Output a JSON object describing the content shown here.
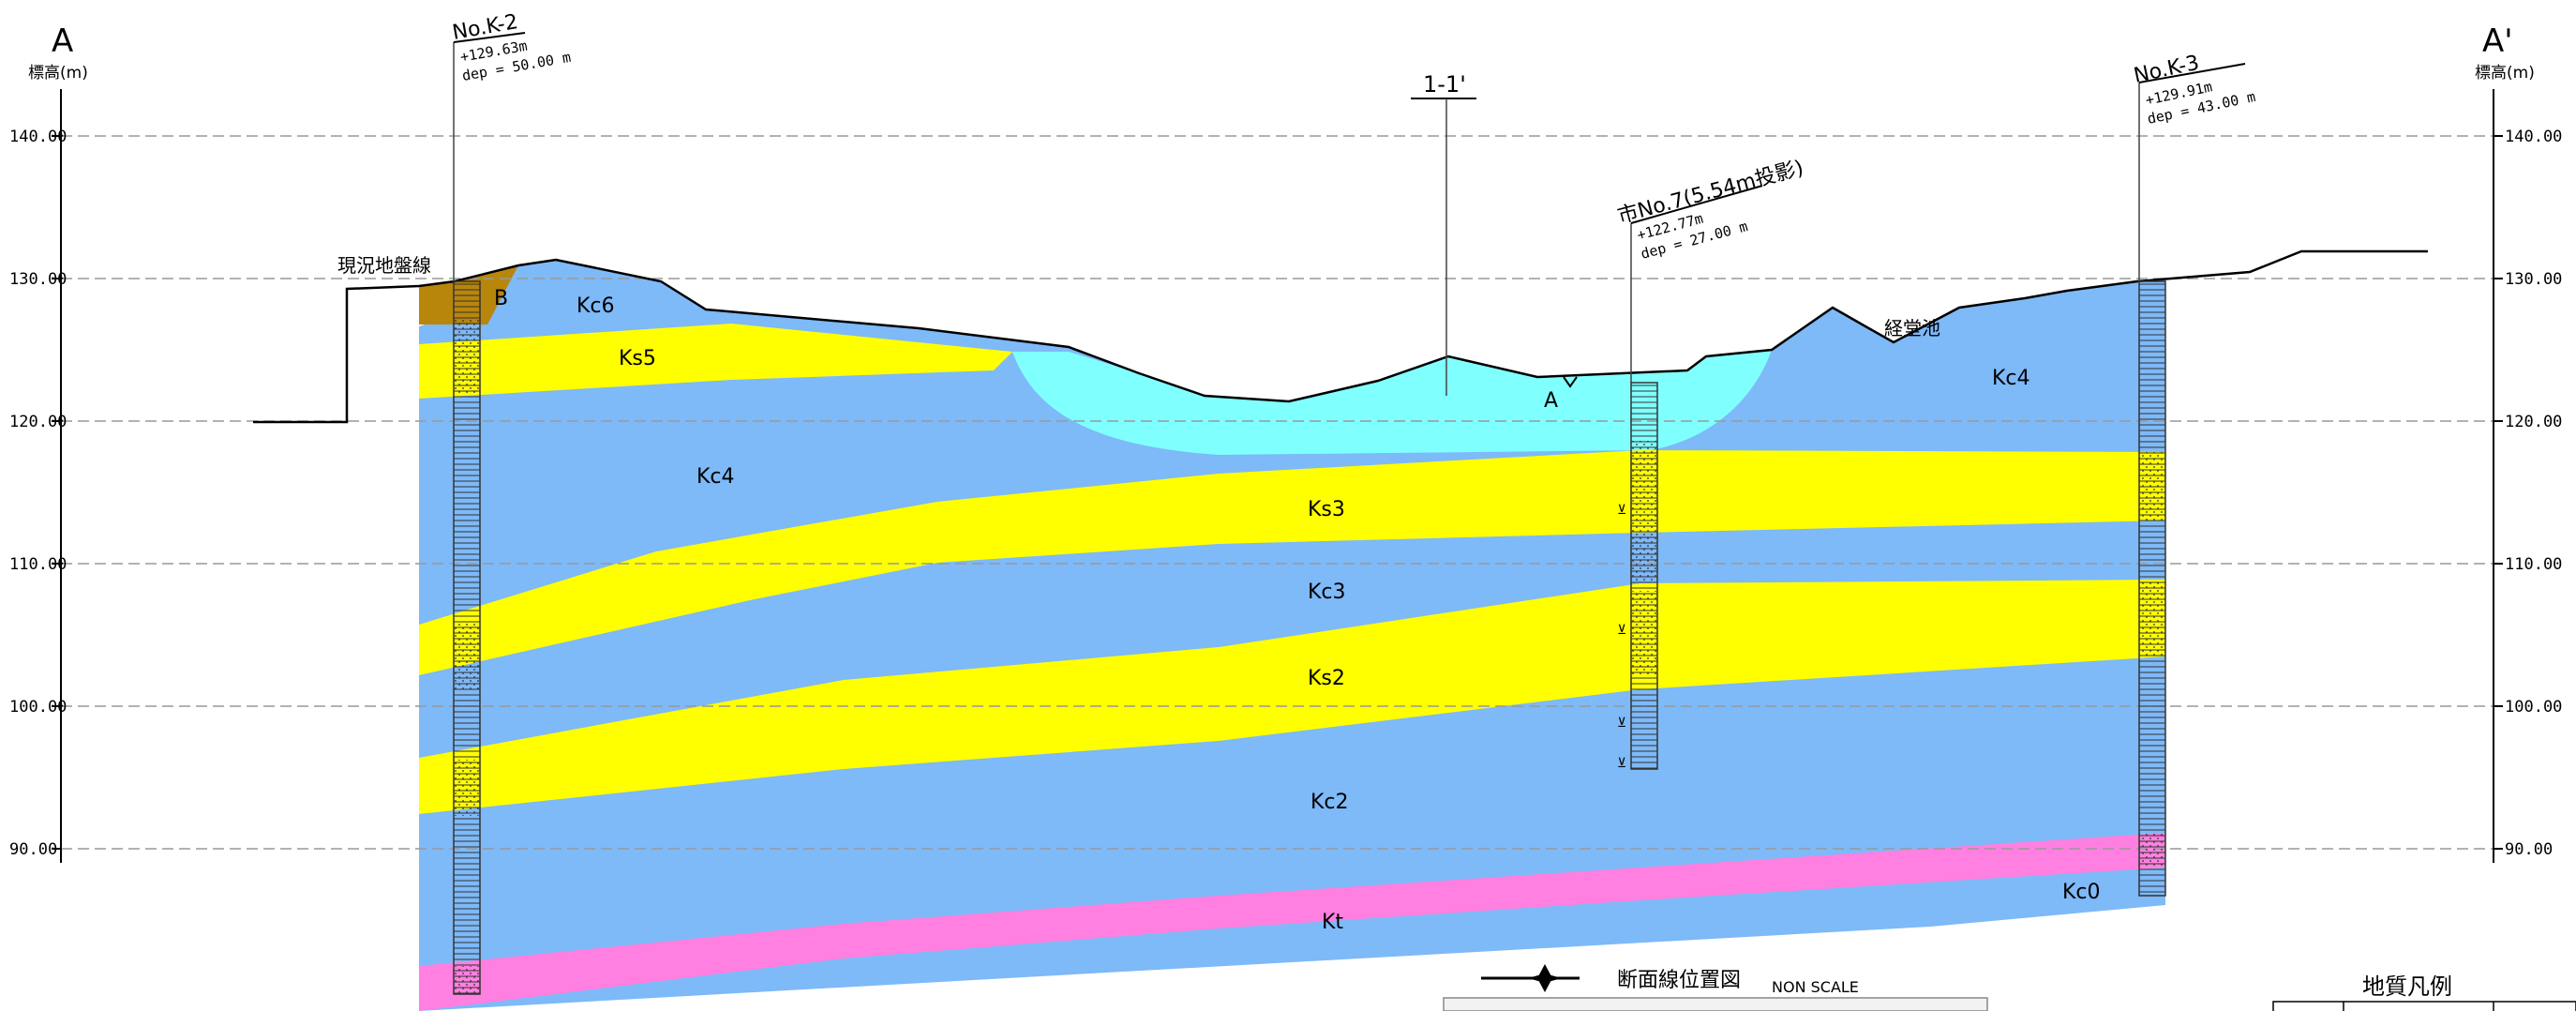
{
  "section": {
    "left_end_label": "A",
    "right_end_label": "A'",
    "left_axis_unit": "標高(m)",
    "right_axis_unit": "標高(m)",
    "elevation_ticks": [
      "140.00",
      "130.00",
      "120.00",
      "110.00",
      "100.00",
      "90.00"
    ],
    "ground_line_label": "現況地盤線",
    "pond_label": "経堂池",
    "cross_section_marker": "1-1'"
  },
  "boreholes": [
    {
      "name": "No.K-2",
      "elevation": "+129.63m",
      "depth": "dep = 50.00 m"
    },
    {
      "name": "市No.7(5.54m投影)",
      "elevation": "+122.77m",
      "depth": "dep = 27.00 m"
    },
    {
      "name": "No.K-3",
      "elevation": "+129.91m",
      "depth": "dep = 43.00 m"
    }
  ],
  "layers": [
    {
      "code": "B",
      "type": "fill",
      "color": "#b8860b"
    },
    {
      "code": "A",
      "type": "alluvium",
      "color": "#80ffff"
    },
    {
      "code": "Kc6",
      "type": "clay",
      "color": "#7eb9f8"
    },
    {
      "code": "Ks5",
      "type": "sand",
      "color": "#ffff00"
    },
    {
      "code": "Kc4",
      "type": "clay",
      "color": "#7eb9f8"
    },
    {
      "code": "Ks3",
      "type": "sand",
      "color": "#ffff00"
    },
    {
      "code": "Kc3",
      "type": "clay",
      "color": "#7eb9f8"
    },
    {
      "code": "Ks2",
      "type": "sand",
      "color": "#ffff00"
    },
    {
      "code": "Kc2",
      "type": "clay",
      "color": "#7eb9f8"
    },
    {
      "code": "Kt",
      "type": "tuff",
      "color": "#ff80e0"
    },
    {
      "code": "Kc0",
      "type": "clay",
      "color": "#7eb9f8"
    }
  ],
  "location_map": {
    "title": "断面線位置図",
    "scale_note": "NON SCALE"
  },
  "legend": {
    "title": "地質凡例"
  }
}
